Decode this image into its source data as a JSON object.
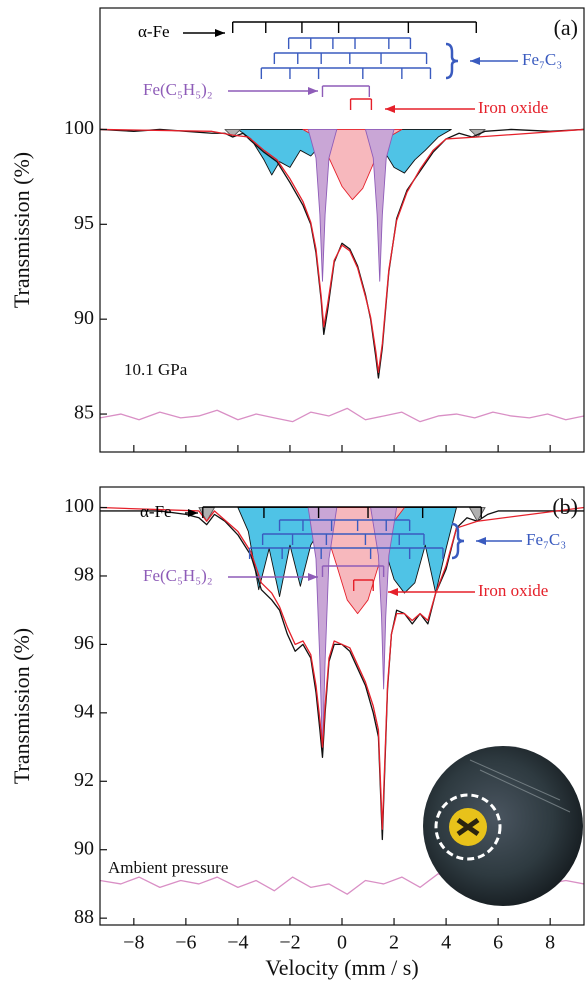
{
  "chart_data": [
    {
      "type": "line",
      "panel_label": "(a)",
      "annotation": "10.1 GPa",
      "y_label": "Transmission (%)",
      "xlim": [
        -9.3,
        9.3
      ],
      "ylim": [
        83,
        106.4
      ],
      "xticks": [
        -8,
        -6,
        -4,
        -2,
        0,
        2,
        4,
        6,
        8
      ],
      "yticks": [
        85,
        90,
        95,
        100
      ],
      "sticks": [
        {
          "label": "α-Fe",
          "color": "#000000",
          "rows": [
            [
              -4.2,
              -2.93,
              -1.54,
              -0.13,
              2.55,
              5.16
            ]
          ]
        },
        {
          "label": "Fe₇C₃",
          "color": "#3a5bbf",
          "rows": [
            [
              -2.05,
              -1.2,
              -0.35,
              0.5,
              1.8,
              2.63
            ],
            [
              -2.6,
              -1.7,
              -0.8,
              0.3,
              1.5,
              3.25
            ],
            [
              -3.1,
              -2.0,
              -0.9,
              0.8,
              2.3,
              3.4
            ]
          ]
        },
        {
          "label": "Fe(C₅H₅)₂",
          "color": "#8e5cb8",
          "rows": [
            [
              -0.75,
              1.05
            ]
          ]
        },
        {
          "label": "Iron oxide",
          "color": "#e5202a",
          "rows": [
            [
              0.33,
              1.13
            ]
          ]
        }
      ],
      "series": [
        {
          "color": "#111111",
          "fill": "#4fc3e6",
          "x": [
            -4,
            -3.5,
            -3.0,
            -2.7,
            -2.4,
            -2.0,
            -1.6,
            -1.2,
            -0.8,
            -0.4,
            0,
            0.4,
            0.8,
            1.2,
            1.6,
            2.0,
            2.4,
            2.8,
            3.2,
            3.7,
            4.2
          ],
          "values": [
            100,
            99.5,
            98.4,
            97.6,
            98.3,
            98.0,
            98.9,
            98.6,
            99.2,
            99.4,
            99.3,
            99.4,
            99.2,
            98.8,
            98.9,
            98.0,
            97.7,
            98.4,
            98.9,
            99.6,
            100
          ]
        },
        {
          "color": "#e5202a",
          "fill": "#f7b8bd",
          "x": [
            -1.5,
            -1,
            -0.5,
            0,
            0.4,
            0.8,
            1.3,
            1.8,
            2.3
          ],
          "values": [
            100,
            99.6,
            98.5,
            97.0,
            96.3,
            96.9,
            98.5,
            99.6,
            100
          ]
        },
        {
          "color": "#8e5cb8",
          "fill": "#c9a6d6",
          "x": [
            -1.3,
            -1.0,
            -0.85,
            -0.75,
            -0.65,
            -0.5,
            -0.2,
            null,
            0.9,
            1.2,
            1.35,
            1.45,
            1.55,
            1.7,
            2.0
          ],
          "values": [
            100,
            98.5,
            95.5,
            92,
            95.5,
            98.5,
            100,
            null,
            100,
            98.5,
            95.5,
            92,
            95.5,
            98.5,
            100
          ]
        },
        {
          "color": "#555555",
          "fill": "#b0b0b0",
          "x": [
            -4.5,
            -4.2,
            -3.9,
            null,
            4.9,
            5.2,
            5.5
          ],
          "values": [
            100,
            99.6,
            100,
            null,
            100,
            99.6,
            100
          ]
        },
        {
          "color": "#111111",
          "x": [
            -9.3,
            -8,
            -7,
            -6,
            -5,
            -4.5,
            -4.2,
            -3.8,
            -3.5,
            -3,
            -2.5,
            -2,
            -1.5,
            -1.2,
            -1.0,
            -0.8,
            -0.7,
            -0.55,
            -0.3,
            0,
            0.3,
            0.6,
            0.9,
            1.1,
            1.3,
            1.4,
            1.55,
            1.8,
            2.1,
            2.5,
            3,
            3.5,
            4,
            4.5,
            5,
            5.5,
            6.5,
            8,
            9.3
          ],
          "values": [
            100,
            99.9,
            100,
            99.9,
            99.8,
            99.8,
            99.6,
            99.8,
            99.4,
            98.8,
            98.3,
            97.2,
            96.0,
            95.0,
            93.5,
            91.0,
            89.2,
            90.5,
            93.0,
            94.0,
            93.7,
            92.8,
            91.3,
            90.0,
            88.0,
            86.9,
            88.5,
            92.5,
            95.3,
            96.8,
            97.8,
            98.8,
            99.5,
            99.8,
            99.6,
            99.9,
            100,
            99.9,
            100
          ]
        },
        {
          "color": "#e5202a",
          "x": [
            -9.3,
            -5,
            -4.2,
            -3.6,
            -3,
            -2.5,
            -2,
            -1.5,
            -1.2,
            -1.0,
            -0.8,
            -0.7,
            -0.55,
            -0.3,
            0,
            0.3,
            0.6,
            0.9,
            1.1,
            1.3,
            1.4,
            1.55,
            1.8,
            2.1,
            2.5,
            3,
            3.5,
            4,
            5.2,
            9.3
          ],
          "values": [
            100,
            99.9,
            99.7,
            99.6,
            98.9,
            98.4,
            97.4,
            96.2,
            95.1,
            93.7,
            91.2,
            89.6,
            90.8,
            93.1,
            93.9,
            93.6,
            92.7,
            91.2,
            90.1,
            88.3,
            87.2,
            88.7,
            92.6,
            95.2,
            96.7,
            97.9,
            98.9,
            99.5,
            99.6,
            100
          ]
        },
        {
          "color": "#d98fc5",
          "x": [
            -9.3,
            -8.5,
            -7.8,
            -7,
            -6.2,
            -5.5,
            -4.8,
            -4,
            -3.3,
            -2.6,
            -1.9,
            -1.2,
            -0.5,
            0.2,
            0.9,
            1.6,
            2.3,
            3,
            3.7,
            4.4,
            5.1,
            5.8,
            6.5,
            7.2,
            7.9,
            8.6,
            9.3
          ],
          "values": [
            84.8,
            85.0,
            84.7,
            85.1,
            84.8,
            84.9,
            85.2,
            84.7,
            85.0,
            84.8,
            84.6,
            85.1,
            84.9,
            85.3,
            84.7,
            84.9,
            85.1,
            84.6,
            84.9,
            85.0,
            84.8,
            85.1,
            84.9,
            84.8,
            85.0,
            84.7,
            84.9
          ]
        }
      ]
    },
    {
      "type": "line",
      "panel_label": "(b)",
      "annotation": "Ambient pressure",
      "y_label": "Transmission (%)",
      "x_label": "Velocity (mm / s)",
      "xlim": [
        -9.3,
        9.3
      ],
      "ylim": [
        87.8,
        100.6
      ],
      "xticks": [
        {
          "value": -8,
          "label": "−8"
        },
        {
          "value": -6,
          "label": "−6"
        },
        {
          "value": -4,
          "label": "−4"
        },
        {
          "value": -2,
          "label": "−2"
        },
        0,
        2,
        4,
        6,
        8
      ],
      "yticks": [
        88,
        90,
        92,
        94,
        96,
        98,
        100
      ],
      "sticks": [
        {
          "label": "α-Fe",
          "color": "#000000",
          "rows": [
            [
              -5.35,
              -3.0,
              -0.9,
              1.0,
              3.1,
              5.35
            ]
          ]
        },
        {
          "label": "Fe₇C₃",
          "color": "#3a5bbf",
          "rows": [
            [
              -2.4,
              -1.5,
              -0.4,
              0.6,
              1.7,
              2.6
            ],
            [
              -3.05,
              -1.9,
              -0.6,
              0.9,
              2.2,
              3.15
            ],
            [
              -3.55,
              -2.3,
              -0.8,
              1.1,
              2.6,
              3.88
            ]
          ]
        },
        {
          "label": "Fe(C₅H₅)₂",
          "color": "#8e5cb8",
          "rows": [
            [
              -0.75,
              1.6
            ]
          ]
        },
        {
          "label": "Iron oxide",
          "color": "#e5202a",
          "rows": [
            [
              0.45,
              1.2
            ]
          ]
        }
      ],
      "series": [
        {
          "color": "#111111",
          "fill": "#4fc3e6",
          "x": [
            -4,
            -3.6,
            -3.2,
            -2.8,
            -2.4,
            -2.0,
            -1.6,
            -1.2,
            -0.8,
            -0.4,
            0,
            0.4,
            0.8,
            1.2,
            1.6,
            2.0,
            2.4,
            2.8,
            3.2,
            3.6,
            4.0,
            4.4
          ],
          "values": [
            100,
            99.3,
            97.6,
            98.8,
            97.4,
            98.9,
            97.7,
            98.9,
            99.4,
            99.6,
            99.5,
            99.6,
            99.4,
            98.9,
            98.9,
            97.9,
            97.5,
            97.8,
            98.9,
            97.5,
            98.8,
            100
          ]
        },
        {
          "color": "#e5202a",
          "fill": "#f7b8bd",
          "x": [
            -1.2,
            -0.7,
            -0.2,
            0.2,
            0.6,
            1.0,
            1.4,
            1.9,
            2.4
          ],
          "values": [
            100,
            99.5,
            98.3,
            97.3,
            96.9,
            97.3,
            98.3,
            99.5,
            100
          ]
        },
        {
          "color": "#8e5cb8",
          "fill": "#c9a6d6",
          "x": [
            -1.3,
            -1.0,
            -0.85,
            -0.75,
            -0.65,
            -0.5,
            -0.2,
            null,
            1.1,
            1.4,
            1.52,
            1.6,
            1.68,
            1.8,
            2.1
          ],
          "values": [
            100,
            98.5,
            95.5,
            92.8,
            95.5,
            98.5,
            100,
            null,
            100,
            98.6,
            96.8,
            94.7,
            96.8,
            98.6,
            100
          ]
        },
        {
          "color": "#555555",
          "fill": "#b0b0b0",
          "x": [
            -5.5,
            -5.2,
            -4.9,
            null,
            4.9,
            5.2,
            5.5
          ],
          "values": [
            100,
            99.6,
            100,
            null,
            100,
            99.6,
            100
          ]
        },
        {
          "color": "#111111",
          "x": [
            -9.3,
            -7,
            -6,
            -5.5,
            -5.2,
            -4.9,
            -4.5,
            -4,
            -3.5,
            -3.1,
            -2.7,
            -2.4,
            -2.1,
            -1.8,
            -1.5,
            -1.2,
            -1.0,
            -0.85,
            -0.75,
            -0.65,
            -0.5,
            -0.3,
            0,
            0.3,
            0.6,
            0.9,
            1.2,
            1.4,
            1.55,
            1.65,
            1.75,
            1.9,
            2.1,
            2.4,
            2.7,
            3.0,
            3.3,
            3.6,
            4.0,
            4.4,
            4.8,
            5.2,
            5.6,
            6,
            7,
            9.3
          ],
          "values": [
            99.9,
            99.9,
            99.8,
            99.7,
            99.5,
            99.8,
            99.6,
            99.2,
            98.6,
            97.6,
            97.3,
            97.0,
            96.3,
            95.8,
            96.0,
            95.6,
            94.6,
            93.5,
            92.7,
            94.0,
            95.5,
            96.0,
            96.0,
            95.8,
            95.3,
            94.8,
            94.0,
            93.3,
            90.3,
            92.5,
            94.7,
            96.3,
            97.0,
            96.9,
            96.6,
            96.9,
            96.6,
            97.5,
            98.2,
            99.4,
            99.7,
            99.6,
            99.8,
            99.9,
            99.9,
            99.9
          ]
        },
        {
          "color": "#e5202a",
          "x": [
            -9.3,
            -5.5,
            -5.2,
            -4.9,
            -4,
            -3.5,
            -3.1,
            -2.7,
            -2.4,
            -2.1,
            -1.8,
            -1.5,
            -1.2,
            -1.0,
            -0.85,
            -0.75,
            -0.65,
            -0.5,
            -0.3,
            0,
            0.3,
            0.6,
            0.9,
            1.2,
            1.4,
            1.55,
            1.65,
            1.75,
            1.9,
            2.1,
            2.4,
            2.7,
            3.0,
            3.3,
            3.6,
            4.0,
            4.4,
            5.2,
            9.3
          ],
          "values": [
            100,
            99.9,
            99.6,
            99.9,
            99.3,
            98.7,
            97.8,
            97.5,
            97.1,
            96.5,
            96.0,
            96.1,
            95.7,
            94.8,
            93.8,
            93.0,
            94.2,
            95.6,
            96.1,
            96.0,
            95.9,
            95.4,
            94.9,
            94.2,
            93.5,
            90.6,
            92.7,
            94.8,
            96.3,
            96.9,
            96.9,
            96.7,
            96.9,
            96.7,
            97.5,
            98.3,
            99.4,
            99.6,
            100
          ]
        },
        {
          "color": "#d98fc5",
          "x": [
            -9.3,
            -8.5,
            -7.8,
            -7,
            -6.2,
            -5.5,
            -4.8,
            -4,
            -3.3,
            -2.6,
            -1.9,
            -1.2,
            -0.5,
            0.2,
            0.9,
            1.6,
            2.3,
            3,
            3.7,
            4.4,
            5.1,
            5.8,
            6.5,
            7.2,
            7.9,
            8.6,
            9.3
          ],
          "values": [
            89.1,
            89.0,
            89.2,
            88.9,
            89.1,
            89.0,
            89.2,
            88.9,
            89.1,
            88.8,
            89.2,
            88.9,
            89.0,
            88.7,
            89.1,
            89.0,
            89.2,
            88.9,
            89.3,
            89.0,
            89.1,
            88.9,
            89.1,
            89.2,
            89.0,
            89.1,
            89.0
          ]
        }
      ]
    }
  ]
}
